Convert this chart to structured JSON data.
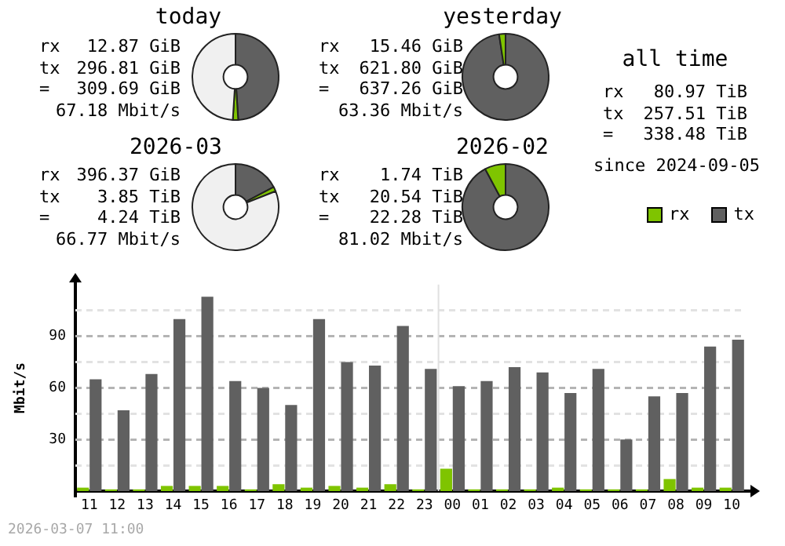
{
  "chart_data": [
    {
      "type": "donut",
      "title": "today",
      "categories": [
        null,
        null,
        null
      ],
      "values": [
        49,
        2,
        49
      ],
      "colors": [
        "#606060",
        "#7fc400",
        "#f0f0f0"
      ],
      "annotations": [
        "rx 12.87 GiB",
        "tx 296.81 GiB",
        "= 309.69 GiB",
        "67.18 Mbit/s"
      ]
    },
    {
      "type": "donut",
      "title": "yesterday",
      "categories": [
        null,
        null
      ],
      "values": [
        97.6,
        2.4
      ],
      "colors": [
        "#606060",
        "#7fc400"
      ],
      "annotations": [
        "rx 15.46 GiB",
        "tx 621.80 GiB",
        "= 637.26 GiB",
        "63.36 Mbit/s"
      ]
    },
    {
      "type": "donut",
      "title": "2026-03",
      "categories": [
        null,
        null,
        null
      ],
      "values": [
        17.3,
        1.7,
        81
      ],
      "colors": [
        "#606060",
        "#7fc400",
        "#f0f0f0"
      ],
      "annotations": [
        "rx 396.37 GiB",
        "tx 3.85 TiB",
        "= 4.24 TiB",
        "66.77 Mbit/s"
      ]
    },
    {
      "type": "donut",
      "title": "2026-02",
      "categories": [
        null,
        null
      ],
      "values": [
        92.2,
        7.8
      ],
      "colors": [
        "#606060",
        "#7fc400"
      ],
      "annotations": [
        "rx 1.74 TiB",
        "tx 20.54 TiB",
        "= 22.28 TiB",
        "81.02 Mbit/s"
      ]
    },
    {
      "type": "other",
      "title": "all time",
      "annotations": [
        "rx 80.97 TiB",
        "tx 257.51 TiB",
        "= 338.48 TiB",
        "since 2024-09-05"
      ]
    },
    {
      "type": "bar",
      "ylabel": "Mbit/s",
      "categories": [
        "11",
        "12",
        "13",
        "14",
        "15",
        "16",
        "17",
        "18",
        "19",
        "20",
        "21",
        "22",
        "23",
        "00",
        "01",
        "02",
        "03",
        "04",
        "05",
        "06",
        "07",
        "08",
        "09",
        "10"
      ],
      "series": [
        {
          "name": "rx",
          "color": "#7fc400",
          "values": [
            2,
            1,
            1,
            3,
            3,
            3,
            1,
            4,
            2,
            3,
            2,
            4,
            1,
            13,
            1,
            1,
            1,
            2,
            1,
            1,
            1,
            7,
            2,
            2
          ]
        },
        {
          "name": "tx",
          "color": "#606060",
          "values": [
            65,
            47,
            68,
            100,
            113,
            64,
            60,
            50,
            100,
            75,
            73,
            96,
            71,
            61,
            64,
            72,
            69,
            57,
            71,
            30,
            55,
            57,
            84,
            88
          ]
        }
      ],
      "ylim": [
        0,
        120
      ],
      "yticks": [
        {
          "value": 15,
          "label": null
        },
        30,
        {
          "value": 45,
          "label": null
        },
        60,
        {
          "value": 75,
          "label": null
        },
        90,
        {
          "value": 105,
          "label": null
        }
      ],
      "grid": "y",
      "legend": "top right",
      "line_style": "dashed",
      "ref_lines": [
        {
          "axis": "x",
          "value": "00",
          "color": "#e0e0e0"
        }
      ],
      "annotations": [
        "2026-03-07 11:00"
      ]
    }
  ]
}
